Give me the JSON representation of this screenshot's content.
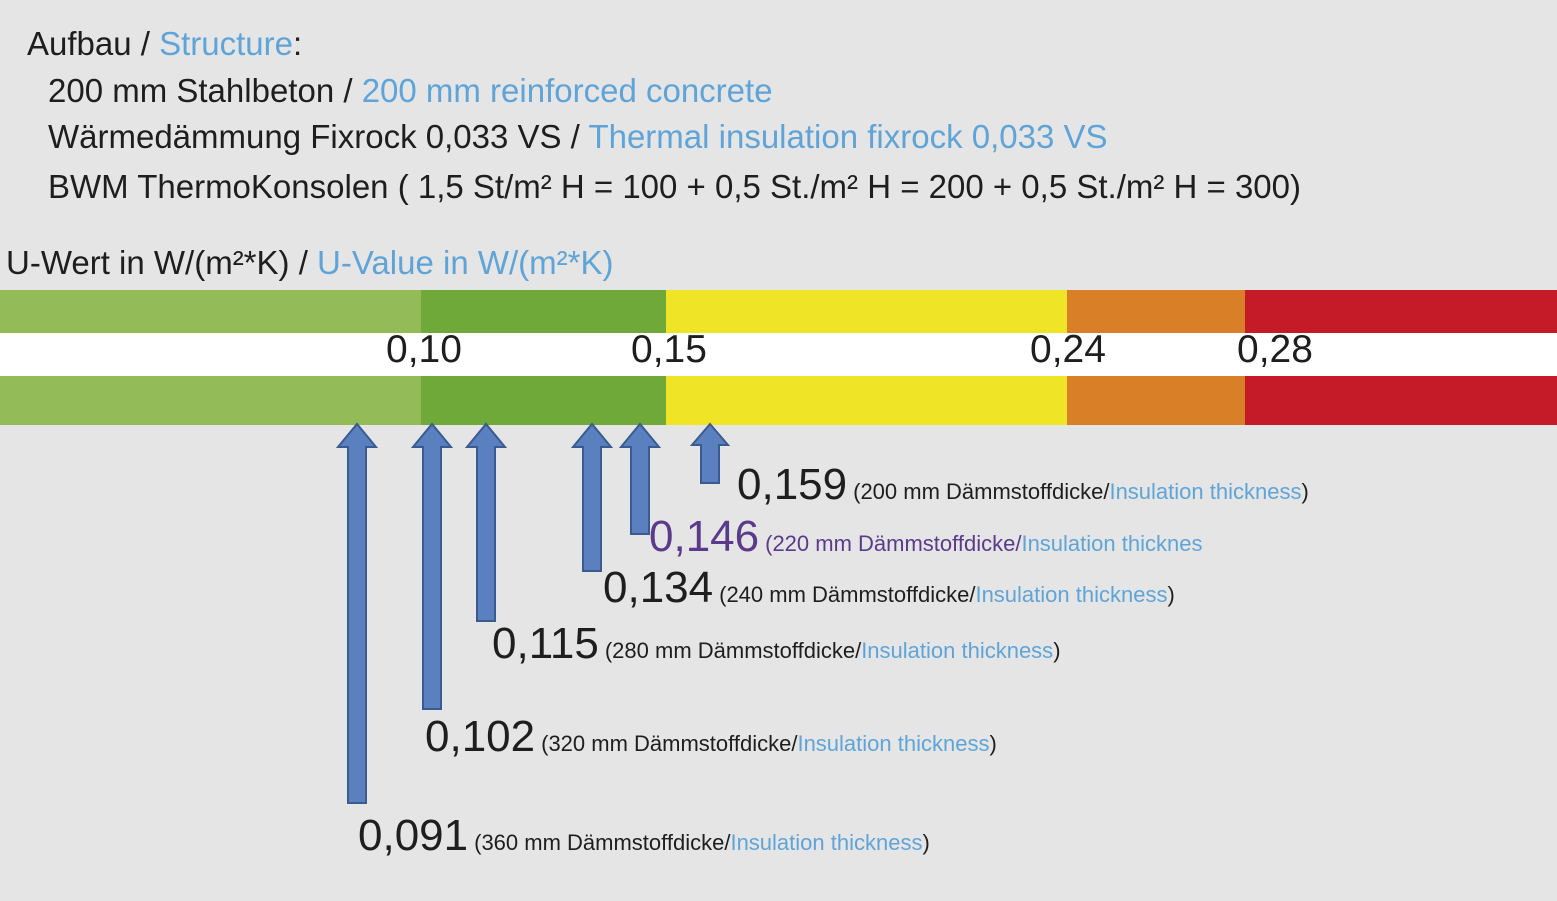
{
  "header": {
    "title_de": "Aufbau /",
    "title_en": "Structure",
    "title_colon": ":",
    "lines": [
      {
        "de": "200 mm Stahlbeton /",
        "en": "200 mm reinforced concrete"
      },
      {
        "de": "Wärmedämmung Fixrock 0,033 VS /",
        "en": "Thermal insulation fixrock 0,033 VS"
      },
      {
        "de": "BWM ThermoKonsolen ( 1,5 St/m² H = 100 + 0,5 St./m² H = 200 + 0,5 St./m² H = 300)",
        "en": ""
      }
    ]
  },
  "scale": {
    "label_de": "U-Wert in W/(m²*K) /",
    "label_en": "U-Value in W/(m²*K)",
    "colors": {
      "light_green": "#93bb57",
      "green": "#6ea939",
      "yellow": "#efe425",
      "orange": "#d97f28",
      "red": "#c51a27"
    },
    "ticks": [
      "0,10",
      "0,15",
      "0,24",
      "0,28"
    ]
  },
  "values": [
    {
      "u": "0,159",
      "thickness": "200 mm Dämmstoffdicke/",
      "en": "Insulation thickness",
      "close": ")",
      "open": "("
    },
    {
      "u": "0,146",
      "thickness": "220 mm Dämmstoffdicke/",
      "en": "Insulation thicknes",
      "close": "",
      "open": "("
    },
    {
      "u": "0,134",
      "thickness": "240 mm Dämmstoffdicke/",
      "en": "Insulation thickness",
      "close": ")",
      "open": "("
    },
    {
      "u": "0,115",
      "thickness": "280 mm Dämmstoffdicke/",
      "en": "Insulation thickness",
      "close": ")",
      "open": "("
    },
    {
      "u": "0,102",
      "thickness": "320 mm Dämmstoffdicke/",
      "en": "Insulation thickness",
      "close": ")",
      "open": "("
    },
    {
      "u": "0,091",
      "thickness": "360 mm Dämmstoffdicke/",
      "en": "Insulation thickness",
      "close": ")",
      "open": "("
    }
  ],
  "arrow_color": "#5a80bf"
}
